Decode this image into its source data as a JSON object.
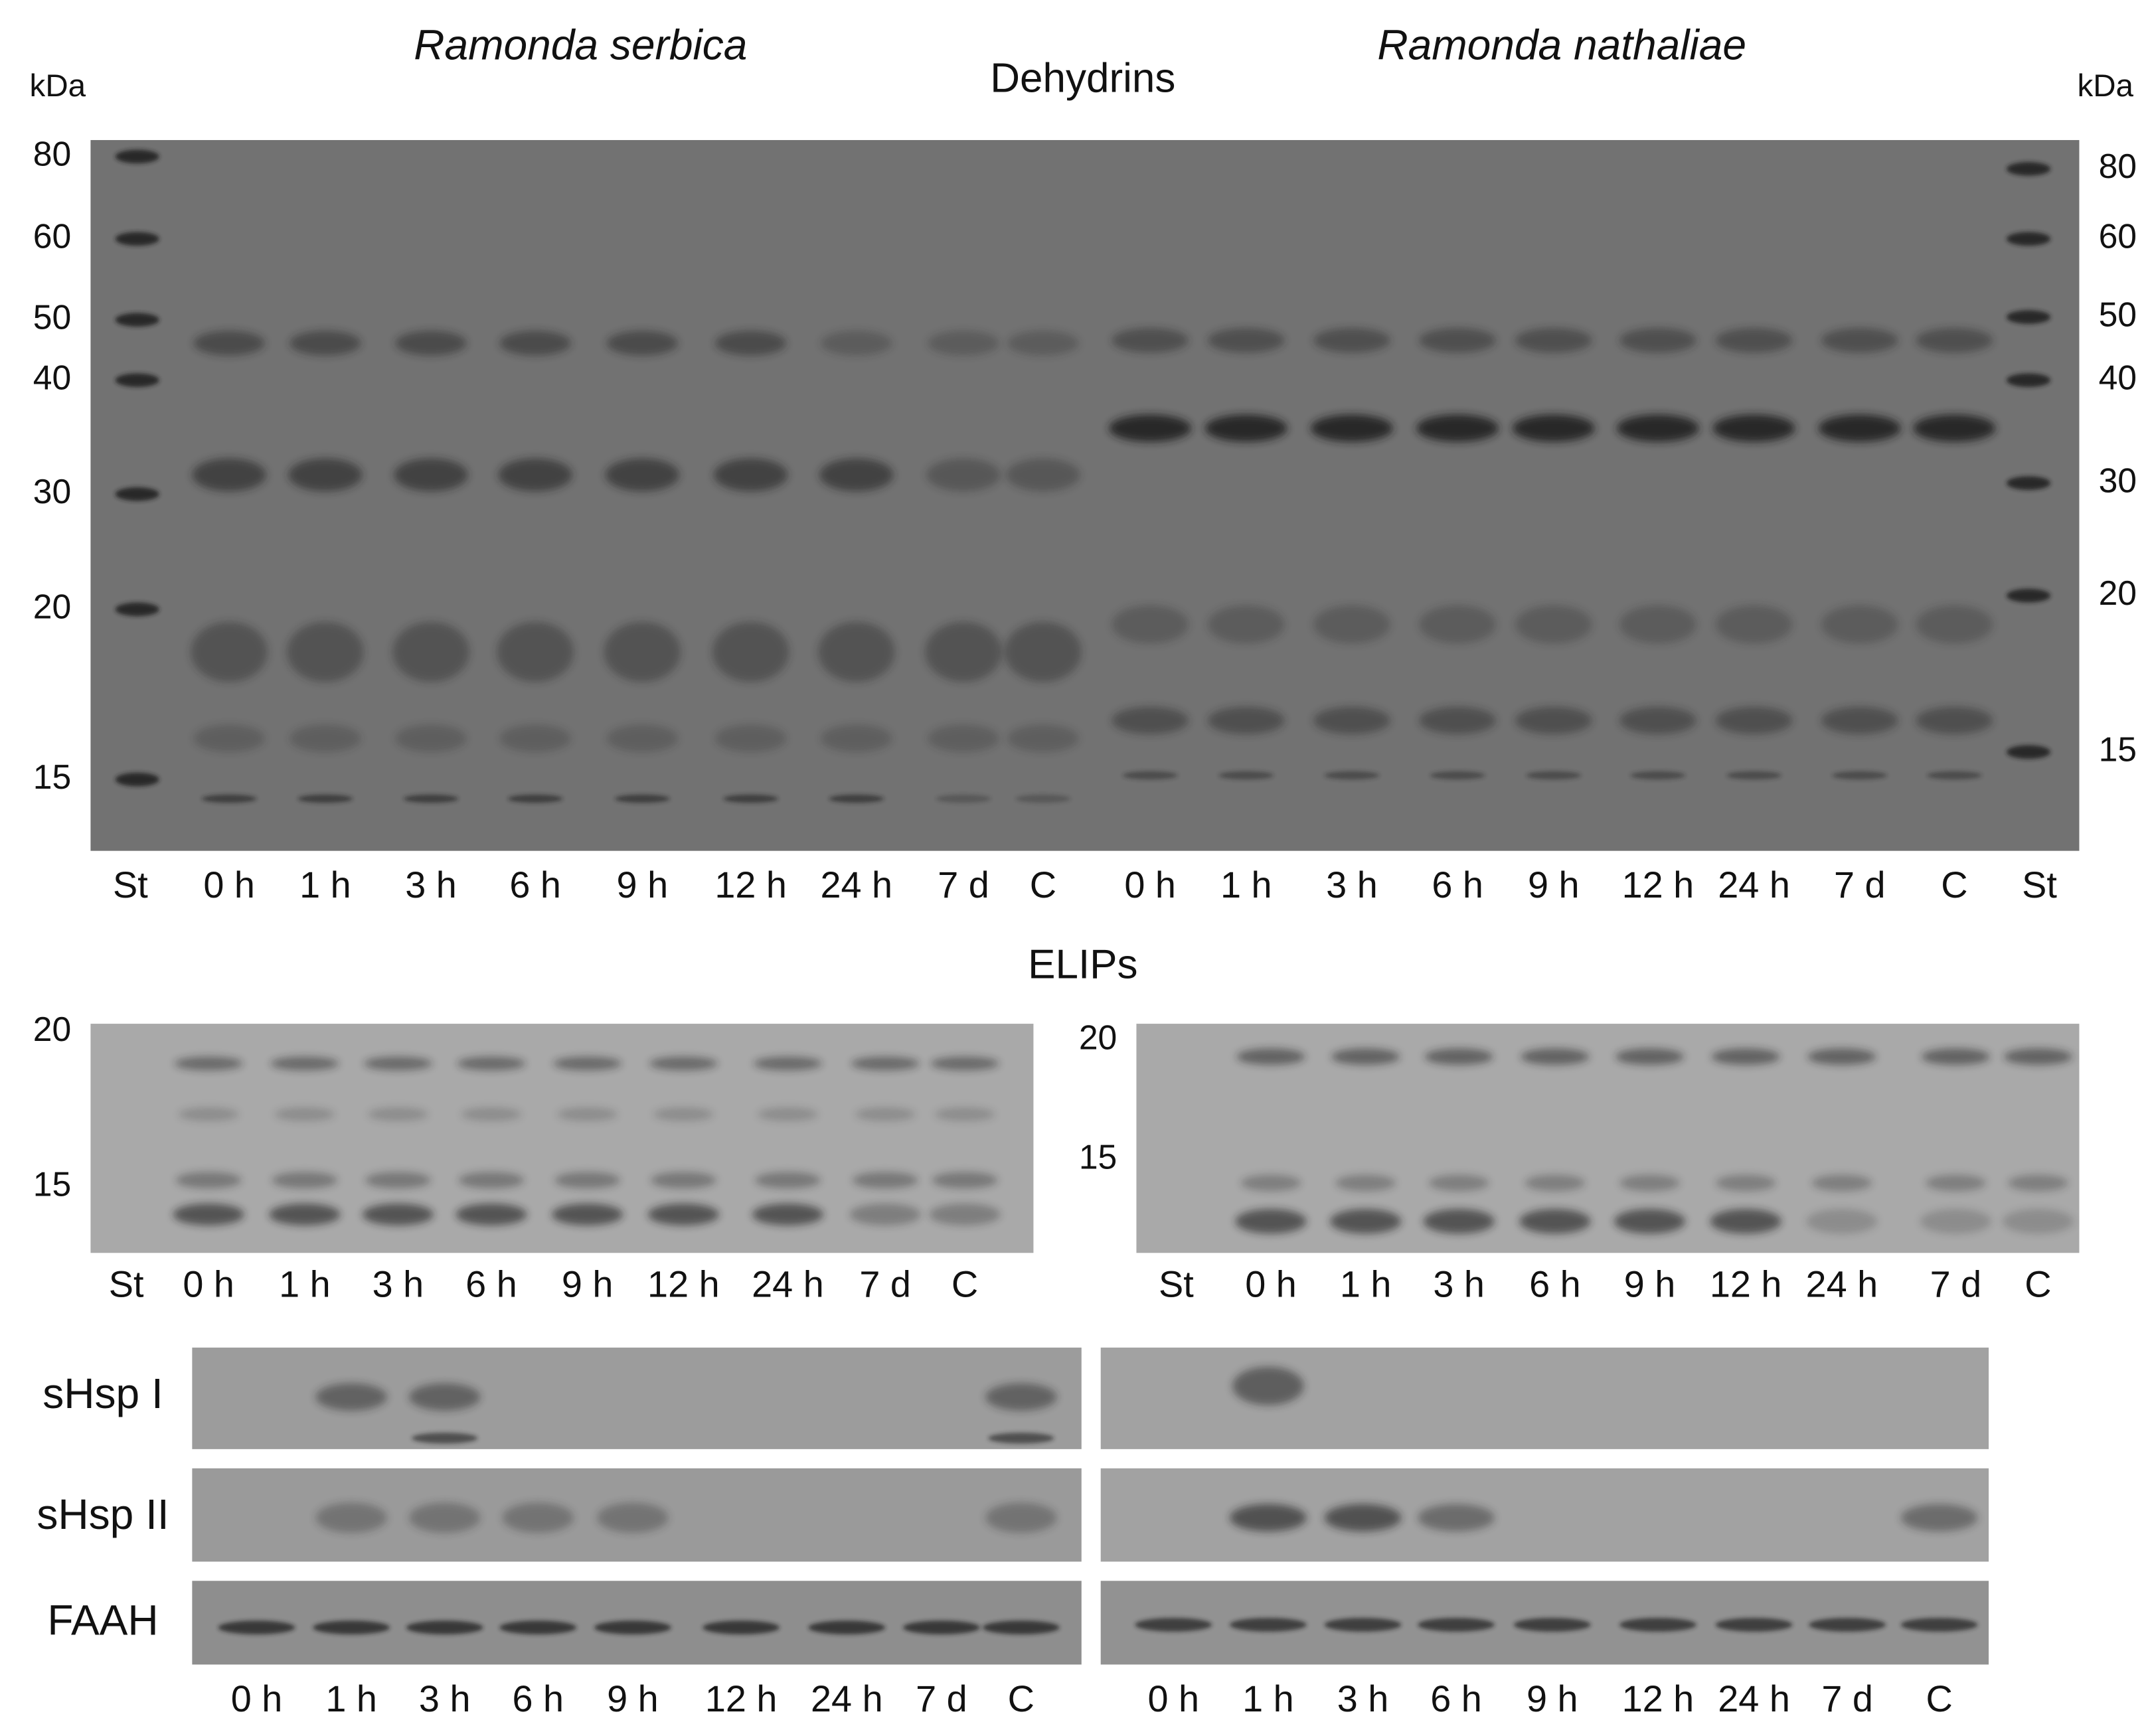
{
  "dehydrins": {
    "title": "Dehydrins",
    "species_left": "Ramonda serbica",
    "species_right": "Ramonda nathaliae",
    "unit_left": "kDa",
    "unit_right": "kDa",
    "markers_left": [
      "80",
      "60",
      "50",
      "40",
      "30",
      "20",
      "15"
    ],
    "markers_right": [
      "80",
      "60",
      "50",
      "40",
      "30",
      "20",
      "15"
    ],
    "lanes": [
      "St",
      "0 h",
      "1 h",
      "3 h",
      "6 h",
      "9 h",
      "12 h",
      "24 h",
      "7 d",
      "C",
      "0 h",
      "1 h",
      "3 h",
      "6 h",
      "9 h",
      "12 h",
      "24 h",
      "7 d",
      "C",
      "St"
    ]
  },
  "elips": {
    "title": "ELIPs",
    "left": {
      "markers": [
        "20",
        "15"
      ],
      "lanes": [
        "St",
        "0 h",
        "1 h",
        "3 h",
        "6 h",
        "9 h",
        "12 h",
        "24 h",
        "7 d",
        "C"
      ]
    },
    "right": {
      "markers": [
        "20",
        "15"
      ],
      "lanes": [
        "St",
        "0 h",
        "1 h",
        "3 h",
        "6 h",
        "9 h",
        "12 h",
        "24 h",
        "7 d",
        "C"
      ]
    }
  },
  "blots": {
    "rows": [
      "sHsp I",
      "sHsp II",
      "FAAH"
    ],
    "lanes_left": [
      "0 h",
      "1 h",
      "3 h",
      "6 h",
      "9 h",
      "12 h",
      "24 h",
      "7 d",
      "C"
    ],
    "lanes_right": [
      "0 h",
      "1 h",
      "3 h",
      "6 h",
      "9 h",
      "12 h",
      "24 h",
      "7 d",
      "C"
    ]
  }
}
